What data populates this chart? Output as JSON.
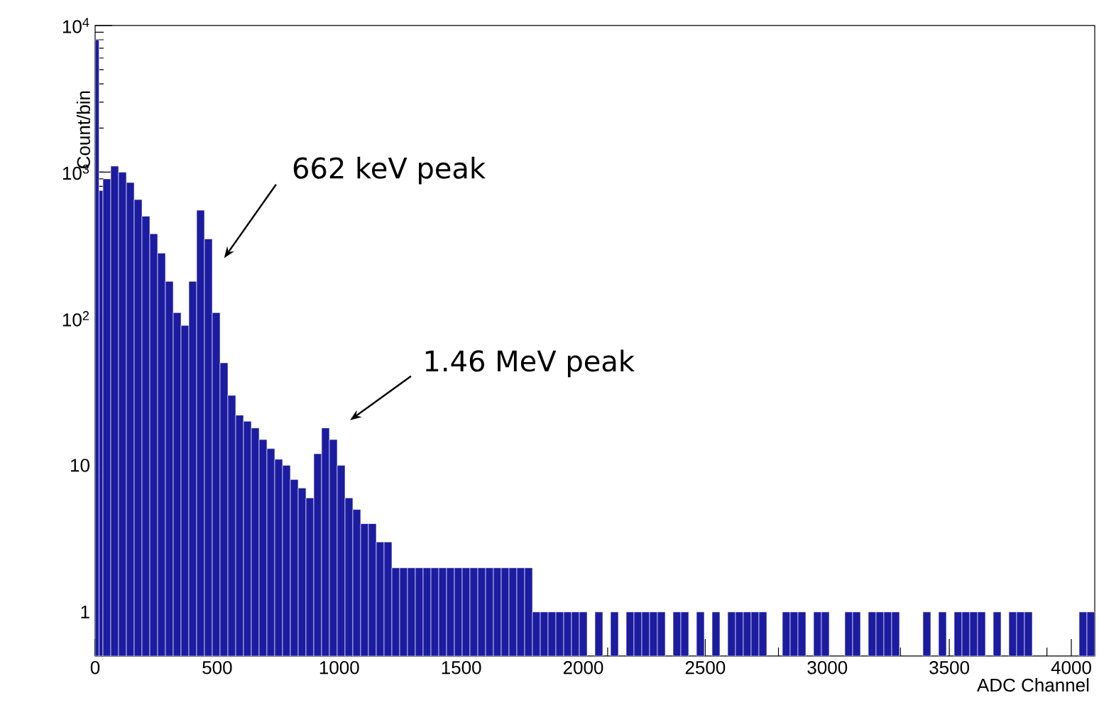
{
  "chart_data": {
    "type": "histogram",
    "xlabel": "ADC Channel",
    "ylabel": "Count/bin",
    "color": "#1c1ca0",
    "log": "y",
    "xlim": [
      0,
      4096
    ],
    "ylim": [
      0.5,
      10000
    ],
    "xticks": [
      0,
      500,
      1000,
      1500,
      2000,
      2500,
      3000,
      3500,
      4000
    ],
    "yticks": [
      1,
      10,
      {
        "value": 100,
        "label": "10$^{2}$"
      },
      {
        "value": 1000,
        "label": "10$^{3}$"
      },
      {
        "value": 10000,
        "label": "10$^{4}$"
      }
    ],
    "bins": [
      0,
      16,
      32,
      64,
      96,
      128,
      160,
      192,
      224,
      256,
      288,
      320,
      352,
      384,
      416,
      448,
      480,
      512,
      544,
      576,
      608,
      640,
      672,
      704,
      736,
      768,
      800,
      832,
      864,
      896,
      928,
      960,
      992,
      1024,
      1056,
      1088,
      1120,
      1152,
      1184,
      1216,
      1248,
      1280,
      1312,
      1344,
      1376,
      1408,
      1440,
      1472,
      1504,
      1536,
      1568,
      1600,
      1632,
      1664,
      1696,
      1728,
      1760,
      1792,
      1824,
      1856,
      1888,
      1920,
      1952,
      1984,
      2016,
      2048,
      2080,
      2112,
      2144,
      2176,
      2208,
      2240,
      2272,
      2304,
      2336,
      2368,
      2400,
      2432,
      2464,
      2496,
      2528,
      2560,
      2592,
      2624,
      2656,
      2688,
      2720,
      2752,
      2816,
      2848,
      2880,
      2912,
      2944,
      2976,
      3008,
      3072,
      3104,
      3136,
      3168,
      3200,
      3232,
      3264,
      3296,
      3392,
      3424,
      3456,
      3488,
      3520,
      3552,
      3584,
      3616,
      3648,
      3680,
      3712,
      3744,
      3776,
      3808,
      3840,
      4032,
      4064,
      4096
    ],
    "values": [
      8000,
      750,
      900,
      1100,
      1000,
      850,
      650,
      500,
      380,
      280,
      180,
      110,
      90,
      180,
      550,
      350,
      110,
      50,
      30,
      22,
      20,
      18,
      15,
      13,
      11,
      10,
      8,
      7,
      6,
      12,
      18,
      15,
      10,
      6,
      5,
      4,
      4,
      3,
      3,
      2,
      2,
      2,
      2,
      2,
      2,
      2,
      2,
      2,
      2,
      2,
      2,
      2,
      2,
      2,
      2,
      2,
      2,
      1,
      1,
      1,
      1,
      1,
      1,
      1,
      null,
      1,
      null,
      1,
      null,
      1,
      1,
      1,
      1,
      1,
      null,
      1,
      1,
      null,
      1,
      null,
      1,
      null,
      1,
      1,
      1,
      1,
      1,
      null,
      1,
      1,
      1,
      null,
      1,
      1,
      null,
      1,
      1,
      null,
      1,
      1,
      1,
      1,
      null,
      1,
      null,
      1,
      null,
      1,
      1,
      1,
      1,
      null,
      1,
      null,
      1,
      1,
      1,
      null,
      1,
      1
    ],
    "annotations": [
      "662 keV peak",
      "1.46 MeV peak"
    ]
  }
}
